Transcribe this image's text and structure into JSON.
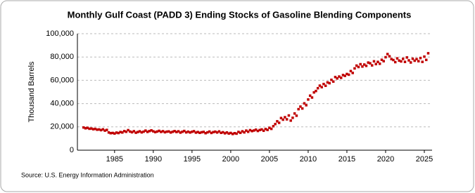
{
  "chart_data": {
    "type": "scatter",
    "title": "Monthly Gulf Coast (PADD 3) Ending Stocks of Gasoline Blending Components",
    "y_label": "Thousand Barrels",
    "source": "Source: U.S. Energy Information Administration",
    "xlim": [
      1980.2,
      2026
    ],
    "ylim": [
      0,
      100000
    ],
    "xticks": [
      1985,
      1990,
      1995,
      2000,
      2005,
      2010,
      2015,
      2020,
      2025
    ],
    "yticks": [
      0,
      {
        "value": 20000,
        "label": "20,000"
      },
      {
        "value": 40000,
        "label": "40,000"
      },
      {
        "value": 60000,
        "label": "60,000"
      },
      {
        "value": 80000,
        "label": "80,000"
      },
      {
        "value": 100000,
        "label": "100,000"
      }
    ],
    "grid": true,
    "color": "#c00000",
    "x": [
      1981,
      1981.25,
      1981.5,
      1981.75,
      1982,
      1982.25,
      1982.5,
      1982.75,
      1983,
      1983.25,
      1983.5,
      1983.75,
      1984,
      1984.25,
      1984.5,
      1984.75,
      1985,
      1985.25,
      1985.5,
      1985.75,
      1986,
      1986.25,
      1986.5,
      1986.75,
      1987,
      1987.25,
      1987.5,
      1987.75,
      1988,
      1988.25,
      1988.5,
      1988.75,
      1989,
      1989.25,
      1989.5,
      1989.75,
      1990,
      1990.25,
      1990.5,
      1990.75,
      1991,
      1991.25,
      1991.5,
      1991.75,
      1992,
      1992.25,
      1992.5,
      1992.75,
      1993,
      1993.25,
      1993.5,
      1993.75,
      1994,
      1994.25,
      1994.5,
      1994.75,
      1995,
      1995.25,
      1995.5,
      1995.75,
      1996,
      1996.25,
      1996.5,
      1996.75,
      1997,
      1997.25,
      1997.5,
      1997.75,
      1998,
      1998.25,
      1998.5,
      1998.75,
      1999,
      1999.25,
      1999.5,
      1999.75,
      2000,
      2000.25,
      2000.5,
      2000.75,
      2001,
      2001.25,
      2001.5,
      2001.75,
      2002,
      2002.25,
      2002.5,
      2002.75,
      2003,
      2003.25,
      2003.5,
      2003.75,
      2004,
      2004.25,
      2004.5,
      2004.75,
      2005,
      2005.25,
      2005.5,
      2005.75,
      2006,
      2006.25,
      2006.5,
      2006.75,
      2007,
      2007.25,
      2007.5,
      2007.75,
      2008,
      2008.25,
      2008.5,
      2008.75,
      2009,
      2009.25,
      2009.5,
      2009.75,
      2010,
      2010.25,
      2010.5,
      2010.75,
      2011,
      2011.25,
      2011.5,
      2011.75,
      2012,
      2012.25,
      2012.5,
      2012.75,
      2013,
      2013.25,
      2013.5,
      2013.75,
      2014,
      2014.25,
      2014.5,
      2014.75,
      2015,
      2015.25,
      2015.5,
      2015.75,
      2016,
      2016.25,
      2016.5,
      2016.75,
      2017,
      2017.25,
      2017.5,
      2017.75,
      2018,
      2018.25,
      2018.5,
      2018.75,
      2019,
      2019.25,
      2019.5,
      2019.75,
      2020,
      2020.25,
      2020.5,
      2020.75,
      2021,
      2021.25,
      2021.5,
      2021.75,
      2022,
      2022.25,
      2022.5,
      2022.75,
      2023,
      2023.25,
      2023.5,
      2023.75,
      2024,
      2024.25,
      2024.5,
      2024.75,
      2025,
      2025.25,
      2025.5
    ],
    "values": [
      19500,
      18800,
      19200,
      18400,
      18600,
      18000,
      18300,
      17600,
      17800,
      17200,
      17900,
      16800,
      17400,
      15200,
      14600,
      14800,
      14300,
      15100,
      14700,
      15600,
      15200,
      16400,
      15800,
      17200,
      16000,
      15400,
      16300,
      15000,
      15600,
      16200,
      15300,
      15900,
      16800,
      15700,
      16400,
      17000,
      16200,
      15500,
      16000,
      16600,
      15700,
      16300,
      15400,
      15900,
      16100,
      15200,
      15800,
      16400,
      15600,
      16200,
      15100,
      15800,
      16500,
      15300,
      15900,
      15200,
      15800,
      16300,
      15100,
      15600,
      14900,
      15400,
      15700,
      14600,
      15300,
      16000,
      14800,
      15500,
      15900,
      15200,
      16100,
      14900,
      15400,
      14500,
      15200,
      14300,
      14800,
      13900,
      14600,
      14200,
      15700,
      14900,
      16200,
      15300,
      16800,
      15800,
      17200,
      16400,
      16900,
      17600,
      16500,
      17300,
      17800,
      16700,
      18200,
      17400,
      19200,
      18300,
      20600,
      22400,
      24800,
      23500,
      27600,
      26200,
      28300,
      26500,
      29800,
      25400,
      27800,
      31500,
      29600,
      35200,
      37400,
      35800,
      40200,
      38600,
      43500,
      46800,
      45200,
      49600,
      50800,
      53200,
      55400,
      54100,
      56800,
      55300,
      58200,
      57500,
      60400,
      58900,
      62800,
      61600,
      63200,
      62100,
      64500,
      63800,
      65400,
      64800,
      67900,
      66300,
      70200,
      72600,
      71400,
      73800,
      71800,
      73500,
      72400,
      75200,
      74600,
      72800,
      76300,
      73900,
      75800,
      74200,
      77600,
      76400,
      79800,
      82500,
      80600,
      78200,
      77400,
      75600,
      78800,
      76900,
      76200,
      78400,
      75800,
      79600,
      77100,
      75300,
      78500,
      76800,
      78200,
      76400,
      79100,
      75800,
      80300,
      77500,
      83200
    ]
  }
}
